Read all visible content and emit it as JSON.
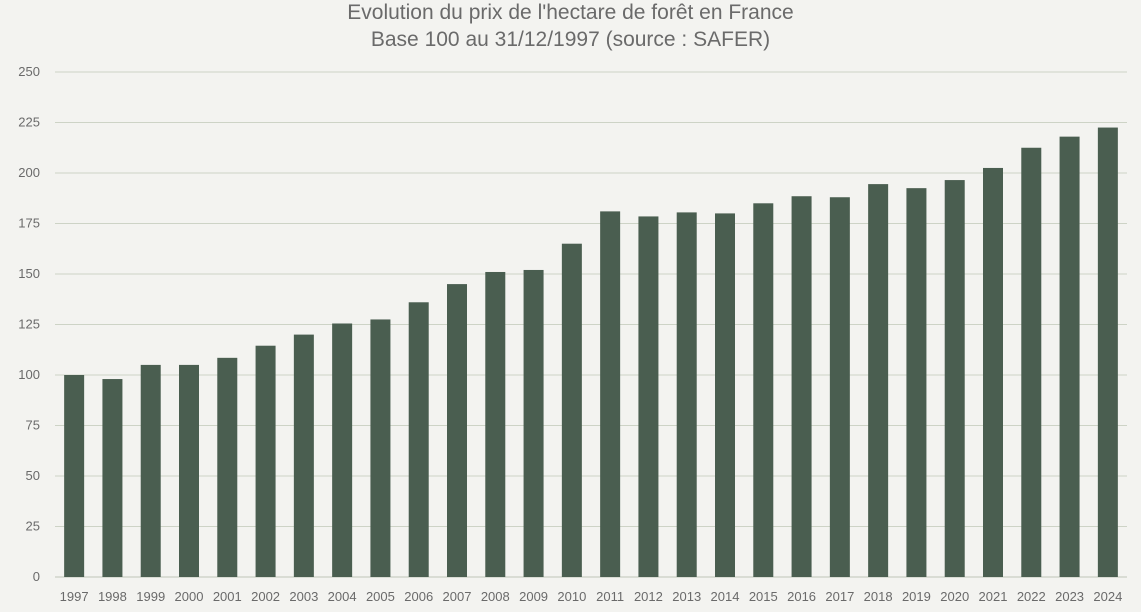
{
  "chart_data": {
    "type": "bar",
    "title": "Evolution du prix de l'hectare de forêt en France",
    "subtitle": "Base 100 au 31/12/1997 (source : SAFER)",
    "xlabel": "",
    "ylabel": "",
    "categories": [
      "1997",
      "1998",
      "1999",
      "2000",
      "2001",
      "2002",
      "2003",
      "2004",
      "2005",
      "2006",
      "2007",
      "2008",
      "2009",
      "2010",
      "2011",
      "2012",
      "2013",
      "2014",
      "2015",
      "2016",
      "2017",
      "2018",
      "2019",
      "2020",
      "2021",
      "2022",
      "2023",
      "2024"
    ],
    "values": [
      100,
      98,
      105,
      105,
      108.5,
      114.5,
      120,
      125.5,
      127.5,
      136,
      145,
      151,
      152,
      165,
      181,
      178.5,
      180.5,
      180,
      185,
      188.5,
      188,
      194.5,
      192.5,
      196.5,
      202.5,
      212.5,
      218,
      222.5
    ],
    "ylim": [
      0,
      250
    ],
    "yticks": [
      0,
      25,
      50,
      75,
      100,
      125,
      150,
      175,
      200,
      225,
      250
    ],
    "grid": true,
    "legend": "none",
    "colors": {
      "bar": "#4a5e50",
      "grid": "#cdd3c6",
      "text": "#6a6a6a",
      "background": "#f3f3f0"
    }
  }
}
